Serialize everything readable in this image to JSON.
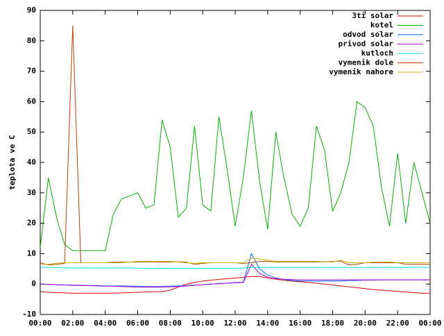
{
  "chart_data": {
    "type": "line",
    "y_label": "teplota ve C",
    "x": [
      0,
      0.5,
      1,
      1.5,
      2,
      2.5,
      3,
      3.5,
      4,
      4.5,
      5,
      5.5,
      6,
      6.5,
      7,
      7.5,
      8,
      8.5,
      9,
      9.5,
      10,
      10.5,
      11,
      11.5,
      12,
      12.5,
      13,
      13.5,
      14,
      14.5,
      15,
      15.5,
      16,
      16.5,
      17,
      17.5,
      18,
      18.5,
      19,
      19.5,
      20,
      20.5,
      21,
      21.5,
      22,
      22.5,
      23,
      23.5,
      24
    ],
    "xlim": [
      0,
      24
    ],
    "xticks": [
      {
        "value": 0,
        "label": "00:00"
      },
      {
        "value": 2,
        "label": "02:00"
      },
      {
        "value": 4,
        "label": "04:00"
      },
      {
        "value": 6,
        "label": "06:00"
      },
      {
        "value": 8,
        "label": "08:00"
      },
      {
        "value": 10,
        "label": "10:00"
      },
      {
        "value": 12,
        "label": "12:00"
      },
      {
        "value": 14,
        "label": "14:00"
      },
      {
        "value": 16,
        "label": "16:00"
      },
      {
        "value": 18,
        "label": "18:00"
      },
      {
        "value": 20,
        "label": "20:00"
      },
      {
        "value": 22,
        "label": "22:00"
      },
      {
        "value": 24,
        "label": "00:00"
      }
    ],
    "ylim": [
      -10,
      90
    ],
    "yticks": [
      -10,
      0,
      10,
      20,
      30,
      40,
      50,
      60,
      70,
      80,
      90
    ],
    "legend": "top-right",
    "series": [
      {
        "name": "3ti solar",
        "color": "#e00000",
        "values": [
          -2.5,
          -2.7,
          -2.8,
          -2.9,
          -3,
          -3,
          -3,
          -3,
          -3,
          -3,
          -2.9,
          -2.8,
          -2.7,
          -2.6,
          -2.5,
          -2.5,
          -2,
          -1,
          0,
          0.5,
          1,
          1.3,
          1.5,
          1.8,
          2,
          2.2,
          2.5,
          2.5,
          2,
          1.6,
          1.2,
          1,
          0.8,
          0.5,
          0.3,
          0,
          -0.3,
          -0.6,
          -0.9,
          -1.2,
          -1.5,
          -1.8,
          -2,
          -2.2,
          -2.4,
          -2.6,
          -2.8,
          -3,
          -3
        ]
      },
      {
        "name": "kotel",
        "color": "#00b000",
        "values": [
          12,
          35,
          22,
          13,
          11,
          11,
          11,
          11,
          11,
          23,
          28,
          29,
          30,
          25,
          26,
          54,
          45,
          22,
          25,
          52,
          26,
          24,
          55,
          38,
          19,
          35,
          57,
          34,
          18,
          50,
          35,
          23,
          19,
          25,
          52,
          44,
          24,
          30,
          40,
          60,
          58,
          52,
          32,
          19,
          43,
          20,
          40,
          30,
          20
        ]
      },
      {
        "name": "odvod solar",
        "color": "#0060ff",
        "values": [
          0,
          -0.1,
          -0.2,
          -0.3,
          -0.3,
          -0.4,
          -0.5,
          -0.5,
          -0.6,
          -0.6,
          -0.6,
          -0.7,
          -0.7,
          -0.8,
          -0.8,
          -0.8,
          -0.7,
          -0.6,
          -0.5,
          -0.3,
          -0.2,
          0,
          0.2,
          0.3,
          0.5,
          0.6,
          10,
          5,
          3,
          2,
          1.5,
          1.2,
          1,
          1,
          1,
          1,
          1,
          1,
          1.2,
          1.2,
          1.3,
          1.3,
          1.4,
          1.4,
          1.4,
          1.4,
          1.4,
          1.4,
          1.4
        ]
      },
      {
        "name": "privod solar",
        "color": "#b000d0",
        "values": [
          0,
          -0.1,
          -0.2,
          -0.3,
          -0.4,
          -0.5,
          -0.5,
          -0.6,
          -0.7,
          -0.7,
          -0.8,
          -0.9,
          -1,
          -1,
          -1,
          -1,
          -0.9,
          -0.8,
          -0.6,
          -0.4,
          -0.2,
          0,
          0.1,
          0.3,
          0.4,
          0.5,
          6.5,
          3.5,
          2.2,
          1.8,
          1.6,
          1.5,
          1.4,
          1.4,
          1.4,
          1.4,
          1.4,
          1.4,
          1.4,
          1.4,
          1.4,
          1.4,
          1.4,
          1.4,
          1.4,
          1.4,
          1.4,
          1.4,
          1.4
        ]
      },
      {
        "name": "kutloch",
        "color": "#00d8d8",
        "values": [
          5.5,
          5.5,
          5.5,
          5.3,
          5.3,
          5.3,
          5.3,
          5.3,
          5.3,
          5.3,
          5.3,
          5.3,
          5.2,
          5.2,
          5.2,
          5.2,
          5.2,
          5.2,
          5.2,
          5.2,
          5.2,
          5.2,
          5.2,
          5.2,
          5.2,
          5.3,
          5.5,
          5.5,
          5.5,
          5.5,
          5.5,
          5.5,
          5.5,
          5.5,
          5.5,
          5.5,
          5.5,
          5.5,
          5.5,
          5.5,
          5.5,
          5.5,
          5.5,
          5.5,
          5.5,
          5.5,
          5.5,
          5.5,
          5.5
        ]
      },
      {
        "name": "vymenik dole",
        "color": "#b84000",
        "values": [
          7,
          6.3,
          6.5,
          6.8,
          85,
          7,
          7,
          7,
          7,
          7.2,
          7.2,
          7.2,
          7.3,
          7.3,
          7.3,
          7.2,
          7.3,
          7.3,
          7.2,
          6.5,
          6.8,
          7,
          7,
          7,
          7,
          6.8,
          7,
          7.5,
          7.5,
          7.3,
          7.3,
          7.3,
          7.3,
          7.3,
          7.3,
          7.3,
          7.5,
          7.5,
          6.3,
          6.5,
          7,
          7,
          7,
          7,
          7,
          6.5,
          6.5,
          6.5,
          6.5
        ]
      },
      {
        "name": "vymenik nahore",
        "color": "#c8b400",
        "values": [
          6.5,
          6.5,
          6.8,
          7,
          7,
          7,
          7,
          7,
          7,
          7,
          7,
          7.2,
          7.5,
          7.5,
          7.5,
          7.5,
          7.5,
          7.2,
          7,
          6.8,
          7,
          7,
          7,
          7,
          7,
          7,
          8.5,
          8.3,
          7.8,
          7.5,
          7.5,
          7.5,
          7.5,
          7.5,
          7.5,
          7.3,
          7.3,
          7.8,
          7,
          7,
          7,
          7.2,
          7.2,
          7.3,
          7,
          7,
          7,
          7,
          7
        ]
      }
    ]
  }
}
